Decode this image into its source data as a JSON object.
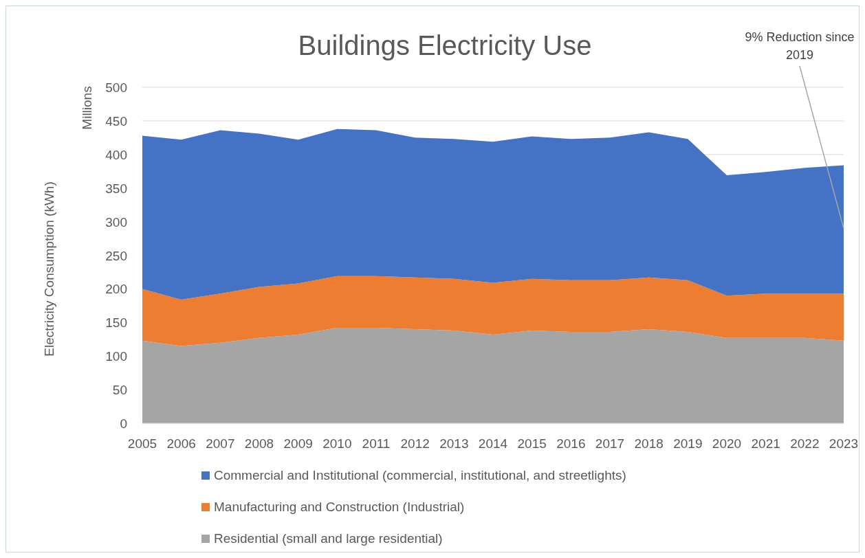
{
  "chart_data": {
    "type": "area",
    "title": "Buildings Electricity Use",
    "ylabel": "Electricity Consumption (kWh)",
    "stacked": true,
    "categories": [
      "2005",
      "2006",
      "2007",
      "2008",
      "2009",
      "2010",
      "2011",
      "2012",
      "2013",
      "2014",
      "2015",
      "2016",
      "2017",
      "2018",
      "2019",
      "2020",
      "2021",
      "2022",
      "2023"
    ],
    "series": [
      {
        "name": "Residential (small and large residential)",
        "color": "#a5a5a5",
        "values": [
          123,
          115,
          120,
          127,
          132,
          142,
          142,
          140,
          138,
          132,
          138,
          136,
          136,
          140,
          136,
          127,
          127,
          127,
          123
        ]
      },
      {
        "name": "Manufacturing and Construction (Industrial)",
        "color": "#ed7d31",
        "values": [
          77,
          69,
          73,
          76,
          76,
          77,
          77,
          77,
          77,
          77,
          77,
          77,
          77,
          77,
          77,
          63,
          66,
          66,
          70
        ]
      },
      {
        "name": "Commercial and Institutional (commercial, institutional, and streetlights)",
        "color": "#4472c4",
        "values": [
          228,
          238,
          243,
          228,
          214,
          219,
          217,
          208,
          208,
          210,
          212,
          210,
          212,
          216,
          210,
          179,
          181,
          187,
          191
        ]
      }
    ],
    "ylim": [
      0,
      500
    ],
    "yticks": [
      0,
      50,
      100,
      150,
      200,
      250,
      300,
      350,
      400,
      450,
      500
    ],
    "grid": "y",
    "legend": "bottom",
    "annotations": [
      "Millions",
      {
        "text": "9% Reduction since 2019",
        "x": "2023",
        "y": 290
      }
    ]
  }
}
